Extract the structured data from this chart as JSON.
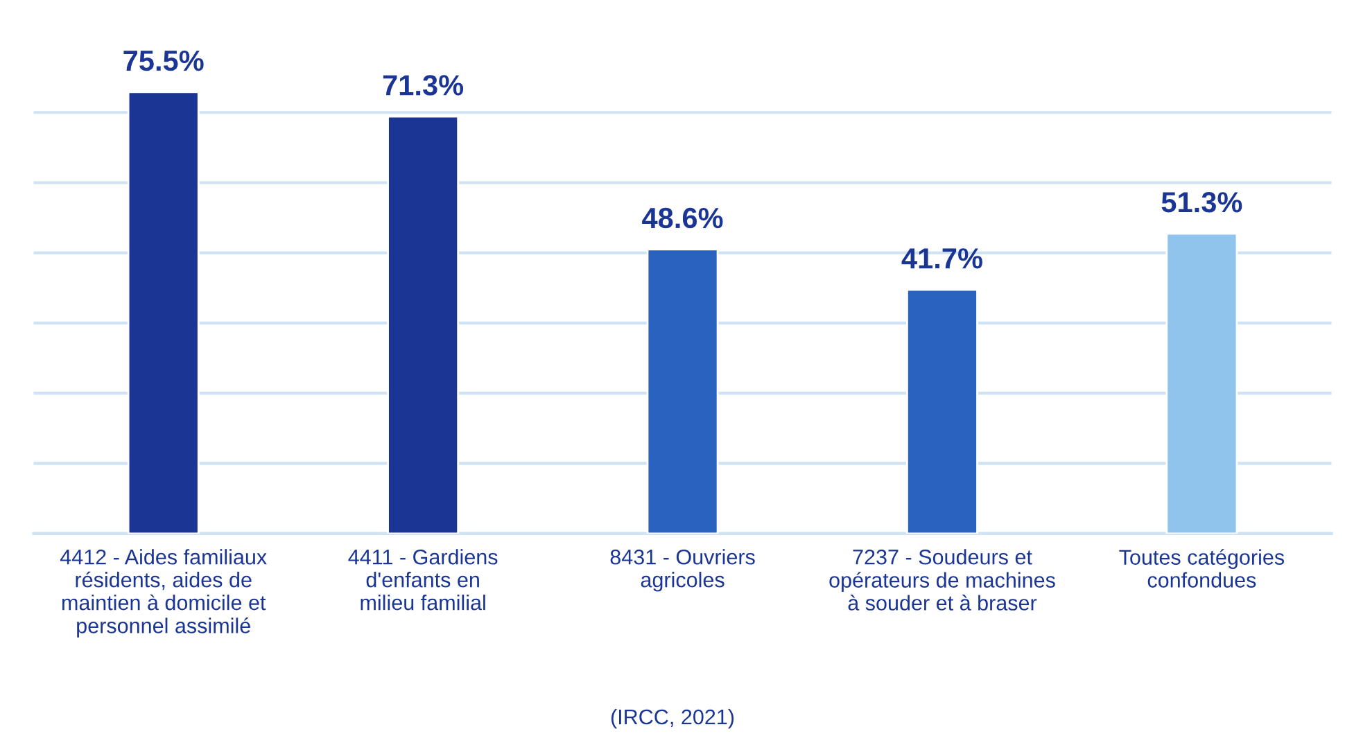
{
  "chart_data": {
    "type": "bar",
    "categories": [
      "4412 - Aides familiaux\nrésidents, aides de\nmaintien à domicile et\npersonnel assimilé",
      "4411 - Gardiens\nd'enfants en\nmilieu familial",
      "8431 - Ouvriers\nagricoles",
      "7237 - Soudeurs et\nopérateurs de machines\nà souder et à braser",
      "Toutes catégories\nconfondues"
    ],
    "values": [
      75.5,
      71.3,
      48.6,
      41.7,
      51.3
    ],
    "value_labels": [
      "75.5%",
      "71.3%",
      "48.6%",
      "41.7%",
      "51.3%"
    ],
    "colors": [
      "#1a3594",
      "#1a3594",
      "#2a62c0",
      "#2a62c0",
      "#90c4ec"
    ],
    "yticks": [
      {
        "value": 0,
        "label": null
      },
      {
        "value": 12,
        "label": null
      },
      {
        "value": 24,
        "label": null
      },
      {
        "value": 36,
        "label": null
      },
      {
        "value": 48,
        "label": null
      },
      {
        "value": 60,
        "label": null
      },
      {
        "value": 72,
        "label": null
      }
    ],
    "grid": "y",
    "annotations": [
      "(IRCC, 2021)"
    ]
  }
}
